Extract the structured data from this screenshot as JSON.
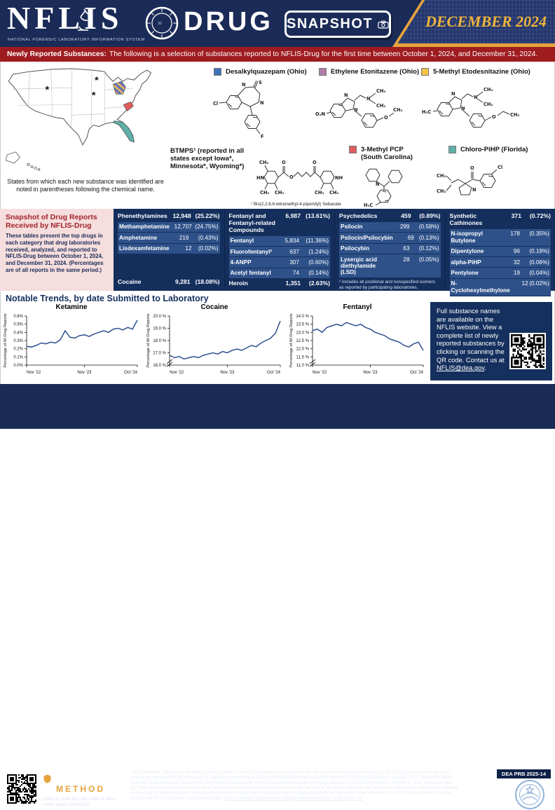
{
  "colors": {
    "navy": "#1B2B58",
    "banner_red": "#9E1C20",
    "gold": "#E8A33D",
    "table_navy": "#152F5D",
    "row_blue": "#2E5189",
    "pink": "#F5DEDD",
    "trend_line": "#2D4F8E"
  },
  "header": {
    "brand": "NFLIS",
    "brand_subtitle": "NATIONAL FORENSIC LABORATORY INFORMATION SYSTEM",
    "product": "DRUG",
    "badge": "SNAPSHOT",
    "issue": "DECEMBER 2024"
  },
  "banner": {
    "label": "Newly Reported Substances:",
    "text": "The following is a selection of substances reported to NFLIS-Drug for the first time between October 1, 2024, and December 31, 2024."
  },
  "map": {
    "caption": "States from which each new substance was identified are noted in parentheses following the chemical name."
  },
  "substances": [
    {
      "label": "Desalkylquazepam (Ohio)",
      "color": "#3C72B8"
    },
    {
      "label": "Ethylene Etonitazene (Ohio)",
      "color": "#B07CAB"
    },
    {
      "label": "5-Methyl Etodesnitazine (Ohio)",
      "color": "#F6C445"
    },
    {
      "label": "BTMPS¹ (reported in all states except Iowa*, Minnesota*, Wyoming*)",
      "color": "",
      "footnote": "¹ Bis(2,2,6,6-tetramethyl-4-piperidyl) Sebacate"
    },
    {
      "label": "3-Methyl PCP (South Carolina)",
      "color": "#E05C5C"
    },
    {
      "label": "Chloro-PiHP (Florida)",
      "color": "#5FB0A8"
    }
  ],
  "snapshot": {
    "title": "Snapshot of Drug Reports Received by NFLIS-Drug",
    "description": "These tables present the top drugs in each category that drug laboratories received, analyzed, and reported to NFLIS-Drug between October 1, 2024, and December 31, 2024. (Percentages are of all reports in the same period.)",
    "columns": [
      {
        "groups": [
          {
            "name": "Phenethylamines",
            "count": "12,948",
            "pct": "(25.22%)",
            "rows": [
              [
                "Methamphetamine",
                "12,707",
                "(24.75%)"
              ],
              [
                "Amphetamine",
                "219",
                "(0.43%)"
              ],
              [
                "Lisdexamfetamine",
                "12",
                "(0.02%)"
              ]
            ]
          }
        ],
        "bottom": {
          "name": "Cocaine",
          "count": "9,281",
          "pct": "(18.08%)"
        }
      },
      {
        "groups": [
          {
            "name": "Fentanyl and Fentanyl-related Compounds",
            "count": "6,987",
            "pct": "(13.61%)",
            "rows": [
              [
                "Fentanyl",
                "5,834",
                "(11.36%)"
              ],
              [
                "Fluorofentanyl²",
                "637",
                "(1.24%)"
              ],
              [
                "4-ANPP",
                "307",
                "(0.60%)"
              ],
              [
                "Acetyl fentanyl",
                "74",
                "(0.14%)"
              ]
            ]
          }
        ],
        "bottom": {
          "name": "Heroin",
          "count": "1,351",
          "pct": "(2.63%)"
        }
      },
      {
        "groups": [
          {
            "name": "Psychedelics",
            "count": "459",
            "pct": "(0.89%)",
            "rows": [
              [
                "Psilocin",
                "299",
                "(0.58%)"
              ],
              [
                "Psilocin/Psilocybin",
                "69",
                "(0.13%)"
              ],
              [
                "Psilocybin",
                "63",
                "(0.12%)"
              ],
              [
                "Lysergic acid diethylamide (LSD)",
                "28",
                "(0.05%)"
              ]
            ]
          }
        ],
        "footnote": "² Includes all positional and nonspecified isomers as reported by participating laboratories."
      },
      {
        "groups": [
          {
            "name": "Synthetic Cathinones",
            "count": "371",
            "pct": "(0.72%)",
            "rows": [
              [
                "N-isopropyl Butylone",
                "178",
                "(0.35%)"
              ],
              [
                "Dipentylone",
                "96",
                "(0.19%)"
              ],
              [
                "alpha-PiHP",
                "32",
                "(0.06%)"
              ],
              [
                "Pentylone",
                "19",
                "(0.04%)"
              ],
              [
                "N-Cyclohexylmethylone",
                "12",
                "(0.02%)"
              ]
            ]
          }
        ]
      }
    ]
  },
  "trends": {
    "title": "Notable Trends, by date Submitted to Laboratory"
  },
  "chart_data": [
    {
      "type": "line",
      "title": "Ketamine",
      "ylabel": "Percentage of All Drug Reports",
      "x_ticks": [
        "Nov '22",
        "Nov '23",
        "Oct '24"
      ],
      "x_tick_idx": [
        0,
        12,
        23
      ],
      "ylim": [
        0,
        0.6
      ],
      "yticks": [
        0,
        0.1,
        0.2,
        0.3,
        0.4,
        0.5,
        0.6
      ],
      "ytick_labels": [
        "0.0%",
        "0.1%",
        "0.2%",
        "0.3%",
        "0.4%",
        "0.5%",
        "0.6%"
      ],
      "axis_break": false,
      "grid": false,
      "legend": "none",
      "values": [
        0.23,
        0.22,
        0.24,
        0.27,
        0.26,
        0.28,
        0.27,
        0.31,
        0.42,
        0.34,
        0.33,
        0.36,
        0.37,
        0.35,
        0.38,
        0.4,
        0.42,
        0.4,
        0.44,
        0.45,
        0.43,
        0.46,
        0.44,
        0.55
      ]
    },
    {
      "type": "line",
      "title": "Cocaine",
      "ylabel": "Percentage of All Drug Reports",
      "x_ticks": [
        "Nov '22",
        "Nov '23",
        "Oct '24"
      ],
      "x_tick_idx": [
        0,
        12,
        23
      ],
      "ylim": [
        16,
        20
      ],
      "yticks": [
        16,
        17,
        18,
        19,
        20
      ],
      "ytick_labels": [
        "16.0 %",
        "17.0 %",
        "18.0 %",
        "19.0 %",
        "20.0 %"
      ],
      "axis_break": true,
      "grid": false,
      "legend": "none",
      "values": [
        16.8,
        16.6,
        16.7,
        16.5,
        16.6,
        16.7,
        16.6,
        16.8,
        16.9,
        17.0,
        16.9,
        17.1,
        17.0,
        17.2,
        17.3,
        17.2,
        17.4,
        17.6,
        17.5,
        17.8,
        18.0,
        18.2,
        18.6,
        19.6
      ]
    },
    {
      "type": "line",
      "title": "Fentanyl",
      "ylabel": "Percentage of All Drug Reports",
      "x_ticks": [
        "Nov '22",
        "Nov '23",
        "Oct '24"
      ],
      "x_tick_idx": [
        0,
        12,
        23
      ],
      "ylim": [
        11,
        14
      ],
      "yticks": [
        11,
        11.5,
        12,
        12.5,
        13,
        13.5,
        14
      ],
      "ytick_labels": [
        "11.0 %",
        "11.5 %",
        "12.0 %",
        "12.5 %",
        "13.0 %",
        "13.5 %",
        "14.0 %"
      ],
      "axis_break": true,
      "grid": false,
      "legend": "none",
      "values": [
        13.1,
        13.2,
        13.0,
        13.3,
        13.4,
        13.5,
        13.4,
        13.6,
        13.5,
        13.4,
        13.5,
        13.3,
        13.2,
        13.0,
        12.9,
        12.8,
        12.6,
        12.5,
        12.4,
        12.2,
        12.1,
        12.3,
        12.4,
        11.9
      ]
    }
  ],
  "info_box": {
    "text": "Full substance names are available on the NFLIS website. View a complete list of newly reported substances by clicking or scanning the QR code. Contact us at ",
    "link": "NFLIS@dea.gov",
    "after_link": "."
  },
  "footer": {
    "guards_line1": "DEA GUARDS",
    "guards_line2": "METHOD",
    "guards_caption": "Click or scan the QR code to learn more about GUARDS.",
    "disclaimer": "Data Disclaimer: Substances identified by federal, state, and local laboratories are included in the raw counts of drug reports received by NFLIS-Drug. Raw counts have not undergone any adjustments to account for laboratory nonreporting. Data for this publication were exported from the NFLIS-Drug database in January 2025. Data in the Newly Reported Substances and Snapshot of Drug Reports Received by NFLIS-Drug sections include only drugs reported to NFLIS-Drug between October 1, 2024, and December 31, 2024. Because of the time it takes for a laboratory to analyze seized material and transfer the data to the NFLIS database, the data in this publication—unlike those reported in an Annual or Midyear Report—are not comprehensive and do not reflect total counts of drugs analyzed over the period. More information on NFLIS data limitations can be found in the NFLIS Questions and Answers guide: ",
    "disclaimer_link": "https://www.nflis.deadiversion.usdoj.gov/nflisdata/docs/5171NFLISQA.pdf.",
    "prb": "DEA PRB 2025-14"
  }
}
